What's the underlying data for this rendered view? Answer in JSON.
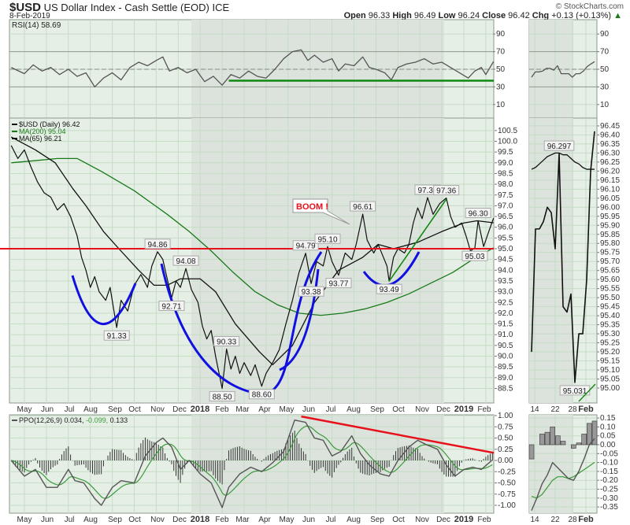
{
  "header": {
    "symbol": "$USD",
    "name": "US Dollar Index - Cash Settle (EOD)",
    "exchange": "ICE",
    "date": "8-Feb-2019",
    "copyright": "© StockCharts.com",
    "open_label": "Open",
    "open": "96.33",
    "high_label": "High",
    "high": "96.49",
    "low_label": "Low",
    "low": "96.24",
    "close_label": "Close",
    "close": "96.42",
    "chg_label": "Chg",
    "chg": "+0.13 (+0.13%)",
    "up_arrow": "▲"
  },
  "colors": {
    "bg": "#e6efe6",
    "shade": "#dce3dc",
    "grid": "#c5dcc5",
    "price": "#111111",
    "ma200": "#1a7a1a",
    "ma65": "#111111",
    "red": "#e8101a",
    "blue": "#1010e0",
    "green_line": "#118811"
  },
  "chart_data": [
    {
      "type": "line",
      "name": "RSI panel",
      "legend": "RSI(14) 58.69",
      "ylim": [
        0,
        100
      ],
      "ticks": [
        "90",
        "70",
        "50",
        "30",
        "10"
      ],
      "support_level": 37,
      "values": [
        [
          -0.6,
          52
        ],
        [
          0,
          45
        ],
        [
          0.4,
          55
        ],
        [
          0.8,
          48
        ],
        [
          1.2,
          52
        ],
        [
          1.6,
          44
        ],
        [
          2,
          50
        ],
        [
          2.4,
          42
        ],
        [
          2.8,
          46
        ],
        [
          3.2,
          30
        ],
        [
          3.6,
          40
        ],
        [
          4,
          46
        ],
        [
          4.4,
          38
        ],
        [
          4.8,
          52
        ],
        [
          5.2,
          58
        ],
        [
          5.6,
          54
        ],
        [
          6,
          60
        ],
        [
          6.3,
          64
        ],
        [
          6.6,
          48
        ],
        [
          7,
          52
        ],
        [
          7.4,
          46
        ],
        [
          7.8,
          50
        ],
        [
          8.2,
          36
        ],
        [
          8.6,
          42
        ],
        [
          9,
          32
        ],
        [
          9.4,
          44
        ],
        [
          9.8,
          40
        ],
        [
          10.2,
          48
        ],
        [
          10.6,
          42
        ],
        [
          11,
          40
        ],
        [
          11.4,
          50
        ],
        [
          11.8,
          62
        ],
        [
          12.2,
          70
        ],
        [
          12.6,
          72
        ],
        [
          12.9,
          60
        ],
        [
          13.2,
          66
        ],
        [
          13.6,
          58
        ],
        [
          14,
          62
        ],
        [
          14.3,
          48
        ],
        [
          14.6,
          56
        ],
        [
          15,
          54
        ],
        [
          15.4,
          64
        ],
        [
          15.7,
          52
        ],
        [
          16,
          50
        ],
        [
          16.4,
          46
        ],
        [
          16.7,
          38
        ],
        [
          17,
          52
        ],
        [
          17.4,
          56
        ],
        [
          17.8,
          58
        ],
        [
          18.2,
          62
        ],
        [
          18.6,
          56
        ],
        [
          19,
          58
        ],
        [
          19.4,
          52
        ],
        [
          19.8,
          46
        ],
        [
          20.2,
          40
        ],
        [
          20.5,
          48
        ],
        [
          20.8,
          52
        ],
        [
          21,
          44
        ],
        [
          21.35,
          58.69
        ]
      ],
      "right_values": [
        41,
        47,
        47,
        48,
        51,
        51,
        49,
        54,
        45,
        45,
        45,
        41,
        45,
        45,
        48,
        53,
        56,
        58.69
      ]
    },
    {
      "type": "line",
      "name": "Price panel",
      "title": "$USD US Dollar Index - Cash Settle (EOD)",
      "legend": [
        {
          "label": "$USD (Daily) 96.42",
          "color": "#111111"
        },
        {
          "label": "MA(200) 95.04",
          "color": "#1a7a1a"
        },
        {
          "label": "MA(65) 96.21",
          "color": "#111111"
        }
      ],
      "ylim": [
        88.2,
        101
      ],
      "ticks": [
        "100.5",
        "100.0",
        "99.5",
        "99.0",
        "98.5",
        "98.0",
        "97.5",
        "97.0",
        "96.5",
        "96.0",
        "95.5",
        "95.0",
        "94.5",
        "94.0",
        "93.5",
        "93.0",
        "92.5",
        "92.0",
        "91.5",
        "91.0",
        "90.5",
        "90.0",
        "89.5",
        "89.0",
        "88.5"
      ],
      "x_labels": [
        "May",
        "Jun",
        "Jul",
        "Aug",
        "Sep",
        "Oct",
        "Nov",
        "Dec",
        "2018",
        "Feb",
        "Mar",
        "Apr",
        "May",
        "Jun",
        "Jul",
        "Aug",
        "Sep",
        "Oct",
        "Nov",
        "Dec",
        "2019",
        "Feb"
      ],
      "price": [
        [
          -0.6,
          99.8
        ],
        [
          -0.3,
          99.2
        ],
        [
          0,
          99.6
        ],
        [
          0.3,
          98.8
        ],
        [
          0.6,
          98.1
        ],
        [
          0.9,
          97.6
        ],
        [
          1.2,
          97.4
        ],
        [
          1.5,
          96.8
        ],
        [
          1.8,
          97.1
        ],
        [
          2.1,
          96.5
        ],
        [
          2.4,
          95.6
        ],
        [
          2.6,
          94.6
        ],
        [
          2.8,
          94.0
        ],
        [
          3.0,
          93.2
        ],
        [
          3.2,
          93.7
        ],
        [
          3.4,
          93.0
        ],
        [
          3.7,
          92.6
        ],
        [
          3.9,
          93.2
        ],
        [
          4.2,
          91.33
        ],
        [
          4.4,
          92.6
        ],
        [
          4.7,
          92.1
        ],
        [
          5.0,
          93.3
        ],
        [
          5.3,
          93.8
        ],
        [
          5.6,
          93.2
        ],
        [
          5.8,
          94.2
        ],
        [
          6.06,
          94.86
        ],
        [
          6.3,
          94.5
        ],
        [
          6.5,
          93.6
        ],
        [
          6.7,
          92.71
        ],
        [
          6.9,
          93.5
        ],
        [
          7.1,
          93.2
        ],
        [
          7.35,
          94.08
        ],
        [
          7.6,
          93.1
        ],
        [
          7.9,
          92.5
        ],
        [
          8.1,
          91.4
        ],
        [
          8.3,
          90.8
        ],
        [
          8.5,
          91.2
        ],
        [
          8.7,
          90.0
        ],
        [
          9.0,
          88.5
        ],
        [
          9.2,
          90.33
        ],
        [
          9.4,
          89.4
        ],
        [
          9.6,
          90.0
        ],
        [
          9.8,
          89.2
        ],
        [
          10.0,
          89.7
        ],
        [
          10.3,
          89.1
        ],
        [
          10.5,
          89.6
        ],
        [
          10.8,
          88.6
        ],
        [
          11.0,
          89.2
        ],
        [
          11.3,
          89.7
        ],
        [
          11.6,
          90.3
        ],
        [
          11.9,
          91.5
        ],
        [
          12.2,
          92.6
        ],
        [
          12.5,
          93.9
        ],
        [
          12.8,
          94.79
        ],
        [
          13.05,
          93.38
        ],
        [
          13.3,
          94.4
        ],
        [
          13.6,
          94.2
        ],
        [
          13.8,
          95.1
        ],
        [
          14.0,
          94.4
        ],
        [
          14.3,
          93.77
        ],
        [
          14.6,
          94.8
        ],
        [
          14.9,
          94.5
        ],
        [
          15.1,
          95.2
        ],
        [
          15.4,
          96.61
        ],
        [
          15.6,
          95.4
        ],
        [
          15.9,
          94.8
        ],
        [
          16.1,
          95.2
        ],
        [
          16.3,
          94.7
        ],
        [
          16.5,
          94.2
        ],
        [
          16.6,
          93.49
        ],
        [
          16.8,
          94.6
        ],
        [
          17.0,
          95.0
        ],
        [
          17.3,
          94.8
        ],
        [
          17.5,
          95.2
        ],
        [
          17.7,
          96.2
        ],
        [
          17.9,
          96.9
        ],
        [
          18.1,
          96.4
        ],
        [
          18.35,
          97.38
        ],
        [
          18.6,
          96.6
        ],
        [
          18.9,
          97.1
        ],
        [
          19.2,
          97.36
        ],
        [
          19.4,
          96.5
        ],
        [
          19.6,
          96.0
        ],
        [
          19.9,
          96.2
        ],
        [
          20.1,
          95.6
        ],
        [
          20.3,
          94.9
        ],
        [
          20.5,
          95.03
        ],
        [
          20.65,
          96.3
        ],
        [
          20.9,
          95.1
        ],
        [
          21.1,
          95.7
        ],
        [
          21.35,
          96.42
        ]
      ],
      "ma200": [
        [
          -0.6,
          99.0
        ],
        [
          0.5,
          99.1
        ],
        [
          1.5,
          99.2
        ],
        [
          2.4,
          99.2
        ],
        [
          3.5,
          98.6
        ],
        [
          5,
          97.7
        ],
        [
          6.5,
          96.6
        ],
        [
          7.5,
          95.8
        ],
        [
          8.5,
          94.9
        ],
        [
          9.5,
          93.9
        ],
        [
          10.5,
          93.0
        ],
        [
          11.5,
          92.4
        ],
        [
          12.5,
          92.0
        ],
        [
          13.5,
          91.9
        ],
        [
          14.5,
          92.0
        ],
        [
          15.5,
          92.2
        ],
        [
          16.5,
          92.5
        ],
        [
          17.5,
          92.9
        ],
        [
          18.5,
          93.4
        ],
        [
          19.5,
          93.9
        ],
        [
          20.4,
          94.5
        ],
        [
          21.35,
          95.04
        ]
      ],
      "ma65": [
        [
          -0.6,
          100.2
        ],
        [
          0.5,
          99.6
        ],
        [
          1.4,
          99.0
        ],
        [
          2.2,
          97.8
        ],
        [
          2.8,
          97.0
        ],
        [
          3.6,
          95.8
        ],
        [
          4.3,
          95.0
        ],
        [
          5.2,
          94.0
        ],
        [
          5.9,
          93.3
        ],
        [
          6.5,
          93.3
        ],
        [
          7.1,
          93.6
        ],
        [
          8.0,
          93.6
        ],
        [
          8.7,
          93.0
        ],
        [
          9.6,
          91.5
        ],
        [
          10.7,
          90.2
        ],
        [
          11.3,
          89.6
        ],
        [
          12.2,
          90.5
        ],
        [
          13.2,
          92.5
        ],
        [
          14.3,
          94.0
        ],
        [
          15.4,
          94.6
        ],
        [
          16.1,
          95.2
        ],
        [
          16.8,
          95.0
        ],
        [
          17.9,
          95.3
        ],
        [
          19.0,
          95.8
        ],
        [
          20.0,
          96.2
        ],
        [
          20.6,
          96.3
        ],
        [
          21.35,
          96.21
        ]
      ],
      "annotations": [
        {
          "text": "91.33",
          "x": 4.2,
          "y": 91.33,
          "pos": "below"
        },
        {
          "text": "94.86",
          "x": 6.06,
          "y": 94.86,
          "pos": "above"
        },
        {
          "text": "92.71",
          "x": 6.7,
          "y": 92.71,
          "pos": "below"
        },
        {
          "text": "94.08",
          "x": 7.35,
          "y": 94.08,
          "pos": "above"
        },
        {
          "text": "90.33",
          "x": 9.2,
          "y": 90.33,
          "pos": "above"
        },
        {
          "text": "88.50",
          "x": 9.0,
          "y": 88.5,
          "pos": "below"
        },
        {
          "text": "88.60",
          "x": 10.8,
          "y": 88.6,
          "pos": "below"
        },
        {
          "text": "94.79",
          "x": 12.8,
          "y": 94.79,
          "pos": "above"
        },
        {
          "text": "93.38",
          "x": 13.05,
          "y": 93.38,
          "pos": "below"
        },
        {
          "text": "95.10",
          "x": 13.8,
          "y": 95.1,
          "pos": "above"
        },
        {
          "text": "93.77",
          "x": 14.3,
          "y": 93.77,
          "pos": "below"
        },
        {
          "text": "96.61",
          "x": 15.4,
          "y": 96.61,
          "pos": "above"
        },
        {
          "text": "93.49",
          "x": 16.6,
          "y": 93.49,
          "pos": "below"
        },
        {
          "text": "97.38",
          "x": 18.35,
          "y": 97.38,
          "pos": "above"
        },
        {
          "text": "97.36",
          "x": 19.2,
          "y": 97.36,
          "pos": "above"
        },
        {
          "text": "96.30",
          "x": 20.65,
          "y": 96.3,
          "pos": "above"
        },
        {
          "text": "95.03",
          "x": 20.5,
          "y": 95.03,
          "pos": "below"
        }
      ],
      "callout": "BOOM !",
      "horizontal_line": 95.0,
      "right_ticks": [
        "96.45",
        "96.40",
        "96.35",
        "96.30",
        "96.25",
        "96.20",
        "96.15",
        "96.10",
        "96.05",
        "96.00",
        "95.95",
        "95.90",
        "95.85",
        "95.80",
        "95.75",
        "95.70",
        "95.65",
        "95.60",
        "95.55",
        "95.50",
        "95.45",
        "95.40",
        "95.35",
        "95.30",
        "95.25",
        "95.20",
        "95.15",
        "95.10",
        "95.05",
        "95.00"
      ],
      "right_x_labels": [
        "14",
        "22",
        "28",
        "Feb"
      ],
      "right_price": [
        95.2,
        95.88,
        95.88,
        95.92,
        96.0,
        95.97,
        95.77,
        96.297,
        95.45,
        95.42,
        95.52,
        95.031,
        95.3,
        95.3,
        95.6,
        96.2,
        96.42
      ],
      "right_ma": [
        96.21,
        96.22,
        96.24,
        96.26,
        96.28,
        96.29,
        96.3,
        96.3,
        96.29,
        96.29,
        96.27,
        96.25,
        96.24,
        96.22,
        96.21,
        96.21,
        96.21
      ],
      "right_annotations": [
        {
          "text": "96.297",
          "i": 7,
          "y": 96.297,
          "pos": "above"
        },
        {
          "text": "95.031",
          "i": 11,
          "y": 95.031,
          "pos": "below"
        }
      ]
    },
    {
      "type": "line",
      "name": "PPO panel",
      "legend": "PPO(12,26,9)",
      "legend_ppo": "0.034,",
      "legend_signal": "-0.099,",
      "legend_hist": "0.133",
      "ylim": [
        -1.1,
        1.05
      ],
      "ticks": [
        "1.00",
        "0.75",
        "0.50",
        "0.25",
        "0.00",
        "-0.25",
        "-0.50",
        "-0.75",
        "-1.00"
      ],
      "ppo": [
        [
          -0.6,
          0
        ],
        [
          0,
          -0.35
        ],
        [
          0.5,
          -0.2
        ],
        [
          1,
          -0.6
        ],
        [
          1.5,
          -0.6
        ],
        [
          2,
          -0.2
        ],
        [
          2.3,
          -0.45
        ],
        [
          2.7,
          -0.5
        ],
        [
          3.2,
          -0.85
        ],
        [
          3.5,
          -1.0
        ],
        [
          4,
          -0.6
        ],
        [
          4.4,
          -0.45
        ],
        [
          5,
          -0.5
        ],
        [
          5.5,
          0.1
        ],
        [
          6,
          0.4
        ],
        [
          6.3,
          0.5
        ],
        [
          6.7,
          0.3
        ],
        [
          7.1,
          -0.2
        ],
        [
          7.5,
          0.0
        ],
        [
          8,
          -0.3
        ],
        [
          8.5,
          -0.5
        ],
        [
          9,
          -1.05
        ],
        [
          9.3,
          -0.6
        ],
        [
          9.8,
          -0.3
        ],
        [
          10.3,
          -0.15
        ],
        [
          10.8,
          -0.25
        ],
        [
          11.3,
          -0.05
        ],
        [
          11.8,
          0.2
        ],
        [
          12.3,
          0.9
        ],
        [
          12.8,
          0.85
        ],
        [
          13.2,
          0.5
        ],
        [
          13.6,
          0.45
        ],
        [
          14,
          0.1
        ],
        [
          14.4,
          0.2
        ],
        [
          14.9,
          0.55
        ],
        [
          15.3,
          0.15
        ],
        [
          15.7,
          -0.1
        ],
        [
          16.2,
          -0.3
        ],
        [
          16.6,
          -0.35
        ],
        [
          17,
          0.0
        ],
        [
          17.5,
          0.3
        ],
        [
          17.9,
          0.45
        ],
        [
          18.3,
          0.35
        ],
        [
          18.8,
          0.25
        ],
        [
          19.2,
          -0.1
        ],
        [
          19.6,
          -0.35
        ],
        [
          20,
          -0.2
        ],
        [
          20.4,
          -0.15
        ],
        [
          20.8,
          -0.2
        ],
        [
          21.35,
          0.034
        ]
      ],
      "right_ppo": [
        -0.37,
        -0.3,
        -0.22,
        -0.17,
        -0.1,
        -0.13,
        -0.16,
        -0.19,
        -0.2,
        -0.15,
        -0.08,
        0.0,
        0.034
      ],
      "right_signal": [
        -0.29,
        -0.3,
        -0.28,
        -0.24,
        -0.2,
        -0.18,
        -0.18,
        -0.19,
        -0.18,
        -0.16,
        -0.14,
        -0.12,
        -0.099
      ]
    }
  ]
}
